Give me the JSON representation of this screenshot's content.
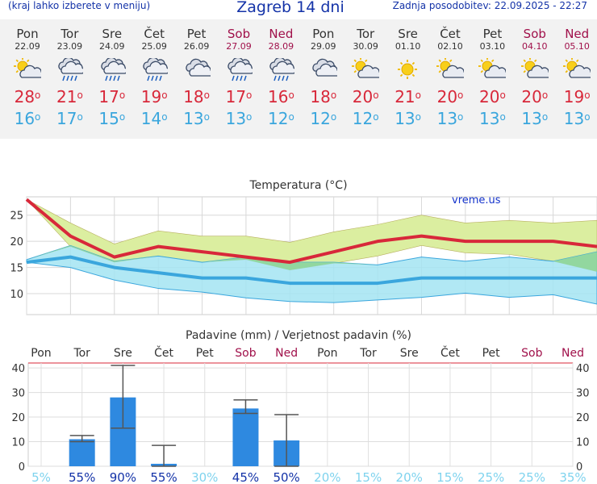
{
  "header": {
    "left": "(kraj lahko izberete v meniju)",
    "title": "Zagreb 14 dni",
    "right": "Zadnja posodobitev: 22.09.2025 - 22:27"
  },
  "days": [
    {
      "name": "Pon",
      "date": "22.09",
      "icon": "sun-cloud-icon",
      "max": "28",
      "min": "16",
      "weekend": false
    },
    {
      "name": "Tor",
      "date": "23.09",
      "icon": "cloud-rain-icon",
      "max": "21",
      "min": "17",
      "weekend": false
    },
    {
      "name": "Sre",
      "date": "24.09",
      "icon": "cloud-rain-icon",
      "max": "17",
      "min": "15",
      "weekend": false
    },
    {
      "name": "Čet",
      "date": "25.09",
      "icon": "cloud-rain-icon",
      "max": "19",
      "min": "14",
      "weekend": false
    },
    {
      "name": "Pet",
      "date": "26.09",
      "icon": "cloudy-icon",
      "max": "18",
      "min": "13",
      "weekend": false
    },
    {
      "name": "Sob",
      "date": "27.09",
      "icon": "cloud-rain-icon",
      "max": "17",
      "min": "13",
      "weekend": true
    },
    {
      "name": "Ned",
      "date": "28.09",
      "icon": "cloud-rain-icon",
      "max": "16",
      "min": "12",
      "weekend": true
    },
    {
      "name": "Pon",
      "date": "29.09",
      "icon": "cloudy-icon",
      "max": "18",
      "min": "12",
      "weekend": false
    },
    {
      "name": "Tor",
      "date": "30.09",
      "icon": "sun-cloud-icon",
      "max": "20",
      "min": "12",
      "weekend": false
    },
    {
      "name": "Sre",
      "date": "01.10",
      "icon": "sun-icon",
      "max": "21",
      "min": "13",
      "weekend": false
    },
    {
      "name": "Čet",
      "date": "02.10",
      "icon": "sun-cloud-icon",
      "max": "20",
      "min": "13",
      "weekend": false
    },
    {
      "name": "Pet",
      "date": "03.10",
      "icon": "sun-cloud-icon",
      "max": "20",
      "min": "13",
      "weekend": false
    },
    {
      "name": "Sob",
      "date": "04.10",
      "icon": "sun-cloud-icon",
      "max": "20",
      "min": "13",
      "weekend": true
    },
    {
      "name": "Ned",
      "date": "05.10",
      "icon": "sun-cloud-icon",
      "max": "19",
      "min": "13",
      "weekend": true
    }
  ],
  "chart_data": [
    {
      "type": "line",
      "title": "Temperatura (°C)",
      "watermark": "vreme.us",
      "ylim": [
        6,
        28.5
      ],
      "yticks": [
        "10",
        "15",
        "20",
        "25"
      ],
      "grid": true,
      "colors": {
        "max": "#d8283a",
        "min": "#3aa6dd",
        "max_band": "#dbeea0",
        "min_band": "#a3e4f2",
        "overlap": "#8fd597"
      },
      "x": [
        0,
        1,
        2,
        3,
        4,
        5,
        6,
        7,
        8,
        9,
        10,
        11,
        12,
        13
      ],
      "series": [
        {
          "key": "max",
          "values": [
            28,
            21,
            17,
            19,
            18,
            17,
            16,
            18,
            20,
            21,
            20,
            20,
            20,
            19
          ]
        },
        {
          "key": "min",
          "values": [
            16,
            17,
            15,
            14,
            13,
            13,
            12,
            12,
            12,
            13,
            13,
            13,
            13,
            13
          ]
        }
      ],
      "max_band_upper": [
        28,
        23.5,
        19.5,
        22,
        21,
        21,
        19.8,
        21.8,
        23.2,
        25,
        23.5,
        24,
        23.5,
        24
      ],
      "max_band_lower": [
        28,
        19,
        16,
        17.2,
        16,
        16.5,
        14.5,
        15.8,
        17.2,
        19.2,
        17.8,
        17.5,
        16.2,
        14.2
      ],
      "min_band_upper": [
        16.5,
        19.2,
        16.2,
        17.2,
        16,
        17,
        16,
        16,
        15.5,
        17,
        16.2,
        17,
        16.2,
        18
      ],
      "min_band_lower": [
        16,
        15,
        12.6,
        11,
        10.3,
        9.2,
        8.5,
        8.3,
        8.8,
        9.3,
        10.1,
        9.3,
        9.8,
        8
      ]
    },
    {
      "type": "bar",
      "title": "Padavine (mm) / Verjetnost padavin (%)",
      "ylim": [
        0,
        42
      ],
      "yticks": [
        "0",
        "10",
        "20",
        "30",
        "40"
      ],
      "grid": true,
      "colors": {
        "bar": "#2e89e0",
        "err": "#555555",
        "prob_low": "#7fd3ee",
        "prob_high": "#1433a8"
      },
      "categories": [
        "Pon",
        "Tor",
        "Sre",
        "Čet",
        "Pet",
        "Sob",
        "Ned",
        "Pon",
        "Tor",
        "Sre",
        "Čet",
        "Pet",
        "Sob",
        "Ned"
      ],
      "weekend": [
        false,
        false,
        false,
        false,
        false,
        true,
        true,
        false,
        false,
        false,
        false,
        false,
        true,
        true
      ],
      "values": [
        0,
        11,
        28,
        1,
        0,
        23.5,
        10.5,
        0,
        0,
        0,
        0,
        0,
        0,
        0
      ],
      "err_low": [
        null,
        10,
        15.5,
        0,
        null,
        21.5,
        0,
        null,
        null,
        null,
        null,
        null,
        null,
        null
      ],
      "err_high": [
        null,
        12.5,
        41,
        8.5,
        null,
        27,
        21,
        null,
        null,
        null,
        null,
        null,
        null,
        null
      ],
      "probability": [
        "5%",
        "55%",
        "90%",
        "55%",
        "30%",
        "45%",
        "50%",
        "20%",
        "15%",
        "20%",
        "15%",
        "25%",
        "25%",
        "35%"
      ],
      "probability_values": [
        5,
        55,
        90,
        55,
        30,
        45,
        50,
        20,
        15,
        20,
        15,
        25,
        25,
        35
      ]
    }
  ]
}
